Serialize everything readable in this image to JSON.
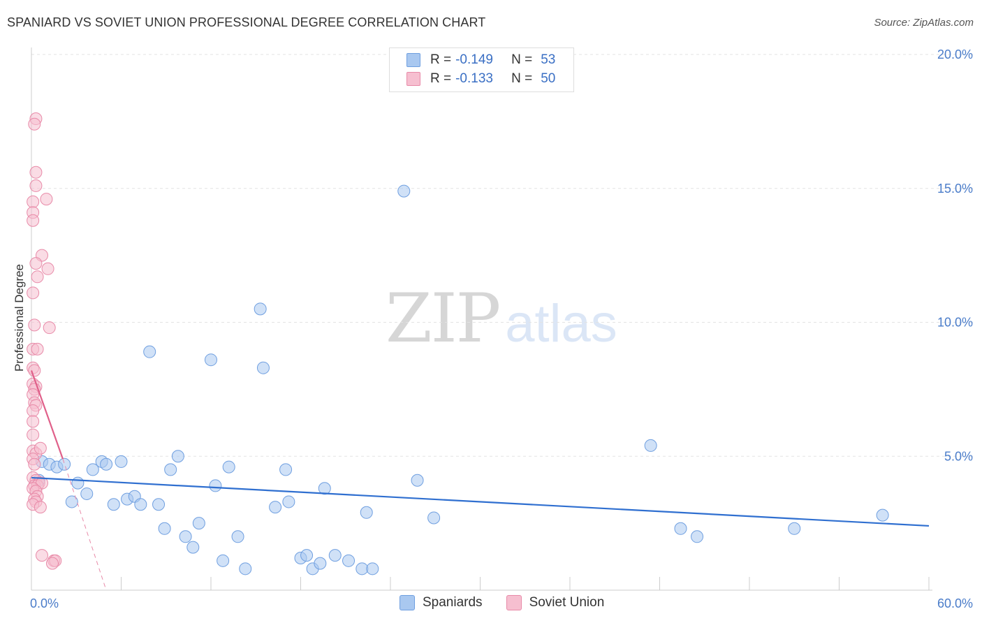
{
  "header": {
    "title": "SPANIARD VS SOVIET UNION PROFESSIONAL DEGREE CORRELATION CHART",
    "source": "Source: ZipAtlas.com"
  },
  "watermark": {
    "part1": "ZIP",
    "part2": "atlas"
  },
  "legend": {
    "rows": [
      {
        "r_label": "R =",
        "r_value": "-0.149",
        "n_label": "N =",
        "n_value": "53",
        "color": "#a9c8f0",
        "border": "#6f9fe0"
      },
      {
        "r_label": "R =",
        "r_value": "-0.133",
        "n_label": "N =",
        "n_value": "50",
        "color": "#f6bfd0",
        "border": "#e88aa8"
      }
    ]
  },
  "bottom_legend": [
    {
      "label": "Spaniards",
      "color": "#a9c8f0",
      "border": "#6f9fe0"
    },
    {
      "label": "Soviet Union",
      "color": "#f6bfd0",
      "border": "#e88aa8"
    }
  ],
  "chart_data": {
    "type": "scatter",
    "title": "SPANIARD VS SOVIET UNION PROFESSIONAL DEGREE CORRELATION CHART",
    "xlabel": "",
    "ylabel": "Professional Degree",
    "xlim": [
      0,
      60
    ],
    "ylim": [
      0,
      20
    ],
    "x_tick_labels": [
      {
        "value": 0,
        "label": "0.0%"
      },
      {
        "value": 60,
        "label": "60.0%"
      }
    ],
    "y_tick_labels": [
      {
        "value": 5,
        "label": "5.0%"
      },
      {
        "value": 10,
        "label": "10.0%"
      },
      {
        "value": 15,
        "label": "15.0%"
      },
      {
        "value": 20,
        "label": "20.0%"
      }
    ],
    "x_minor_ticks": [
      6,
      12,
      18,
      24,
      30,
      36,
      42,
      48,
      54,
      60
    ],
    "grid": "horizontal dashed",
    "series": [
      {
        "name": "Spaniards",
        "color": "#a9c8f0",
        "edge": "#6f9fe0",
        "points": [
          [
            0.5,
            4.1
          ],
          [
            0.7,
            4.8
          ],
          [
            1.2,
            4.7
          ],
          [
            1.7,
            4.6
          ],
          [
            2.2,
            4.7
          ],
          [
            3.1,
            4.0
          ],
          [
            2.7,
            3.3
          ],
          [
            3.7,
            3.6
          ],
          [
            4.1,
            4.5
          ],
          [
            4.7,
            4.8
          ],
          [
            5.0,
            4.7
          ],
          [
            5.5,
            3.2
          ],
          [
            6.0,
            4.8
          ],
          [
            6.4,
            3.4
          ],
          [
            6.9,
            3.5
          ],
          [
            7.3,
            3.2
          ],
          [
            7.9,
            8.9
          ],
          [
            8.5,
            3.2
          ],
          [
            8.9,
            2.3
          ],
          [
            9.3,
            4.5
          ],
          [
            9.8,
            5.0
          ],
          [
            10.3,
            2.0
          ],
          [
            10.8,
            1.6
          ],
          [
            11.2,
            2.5
          ],
          [
            12.0,
            8.6
          ],
          [
            12.3,
            3.9
          ],
          [
            12.8,
            1.1
          ],
          [
            13.2,
            4.6
          ],
          [
            13.8,
            2.0
          ],
          [
            14.3,
            0.8
          ],
          [
            15.3,
            10.5
          ],
          [
            15.5,
            8.3
          ],
          [
            16.3,
            3.1
          ],
          [
            17.0,
            4.5
          ],
          [
            17.2,
            3.3
          ],
          [
            18.0,
            1.2
          ],
          [
            18.4,
            1.3
          ],
          [
            18.8,
            0.8
          ],
          [
            19.3,
            1.0
          ],
          [
            19.6,
            3.8
          ],
          [
            20.3,
            1.3
          ],
          [
            21.2,
            1.1
          ],
          [
            22.1,
            0.8
          ],
          [
            22.4,
            2.9
          ],
          [
            22.8,
            0.8
          ],
          [
            24.9,
            14.9
          ],
          [
            25.8,
            4.1
          ],
          [
            26.9,
            2.7
          ],
          [
            41.4,
            5.4
          ],
          [
            43.4,
            2.3
          ],
          [
            44.5,
            2.0
          ],
          [
            51.0,
            2.3
          ],
          [
            56.9,
            2.8
          ]
        ]
      },
      {
        "name": "Soviet Union",
        "color": "#f6bfd0",
        "edge": "#e88aa8",
        "points": [
          [
            0.3,
            17.6
          ],
          [
            0.2,
            17.4
          ],
          [
            0.3,
            15.6
          ],
          [
            0.3,
            15.1
          ],
          [
            0.1,
            14.5
          ],
          [
            1.0,
            14.6
          ],
          [
            0.1,
            14.1
          ],
          [
            0.1,
            13.8
          ],
          [
            0.7,
            12.5
          ],
          [
            0.3,
            12.2
          ],
          [
            1.1,
            12.0
          ],
          [
            0.4,
            11.7
          ],
          [
            0.1,
            11.1
          ],
          [
            0.2,
            9.9
          ],
          [
            1.2,
            9.8
          ],
          [
            0.1,
            9.0
          ],
          [
            0.4,
            9.0
          ],
          [
            0.1,
            8.3
          ],
          [
            0.2,
            8.2
          ],
          [
            0.1,
            7.7
          ],
          [
            0.3,
            7.6
          ],
          [
            0.2,
            7.5
          ],
          [
            0.1,
            7.3
          ],
          [
            0.2,
            7.0
          ],
          [
            0.3,
            6.9
          ],
          [
            0.1,
            6.7
          ],
          [
            0.1,
            6.3
          ],
          [
            0.1,
            5.8
          ],
          [
            0.1,
            5.2
          ],
          [
            0.3,
            5.1
          ],
          [
            0.6,
            5.3
          ],
          [
            0.1,
            4.9
          ],
          [
            0.2,
            4.7
          ],
          [
            0.1,
            4.2
          ],
          [
            0.3,
            4.1
          ],
          [
            0.5,
            4.0
          ],
          [
            0.2,
            3.9
          ],
          [
            0.4,
            3.9
          ],
          [
            0.7,
            4.0
          ],
          [
            0.1,
            3.8
          ],
          [
            0.3,
            3.7
          ],
          [
            0.4,
            3.5
          ],
          [
            0.2,
            3.4
          ],
          [
            0.3,
            3.3
          ],
          [
            0.1,
            3.2
          ],
          [
            0.6,
            3.1
          ],
          [
            0.7,
            1.3
          ],
          [
            1.5,
            1.1
          ],
          [
            1.6,
            1.1
          ],
          [
            1.4,
            1.0
          ]
        ]
      }
    ],
    "trendlines": [
      {
        "series": "Spaniards",
        "from": [
          0,
          4.2
        ],
        "to": [
          60,
          2.4
        ],
        "style": "solid",
        "color": "#2f6fd0"
      },
      {
        "series": "Soviet Union",
        "from": [
          0,
          8.2
        ],
        "to": [
          2.1,
          4.9
        ],
        "style": "solid",
        "color": "#e0608a"
      },
      {
        "series": "Soviet Union",
        "from": [
          2.1,
          4.9
        ],
        "to": [
          5.0,
          0.0
        ],
        "style": "dashed",
        "color": "#e88aa8"
      }
    ]
  }
}
